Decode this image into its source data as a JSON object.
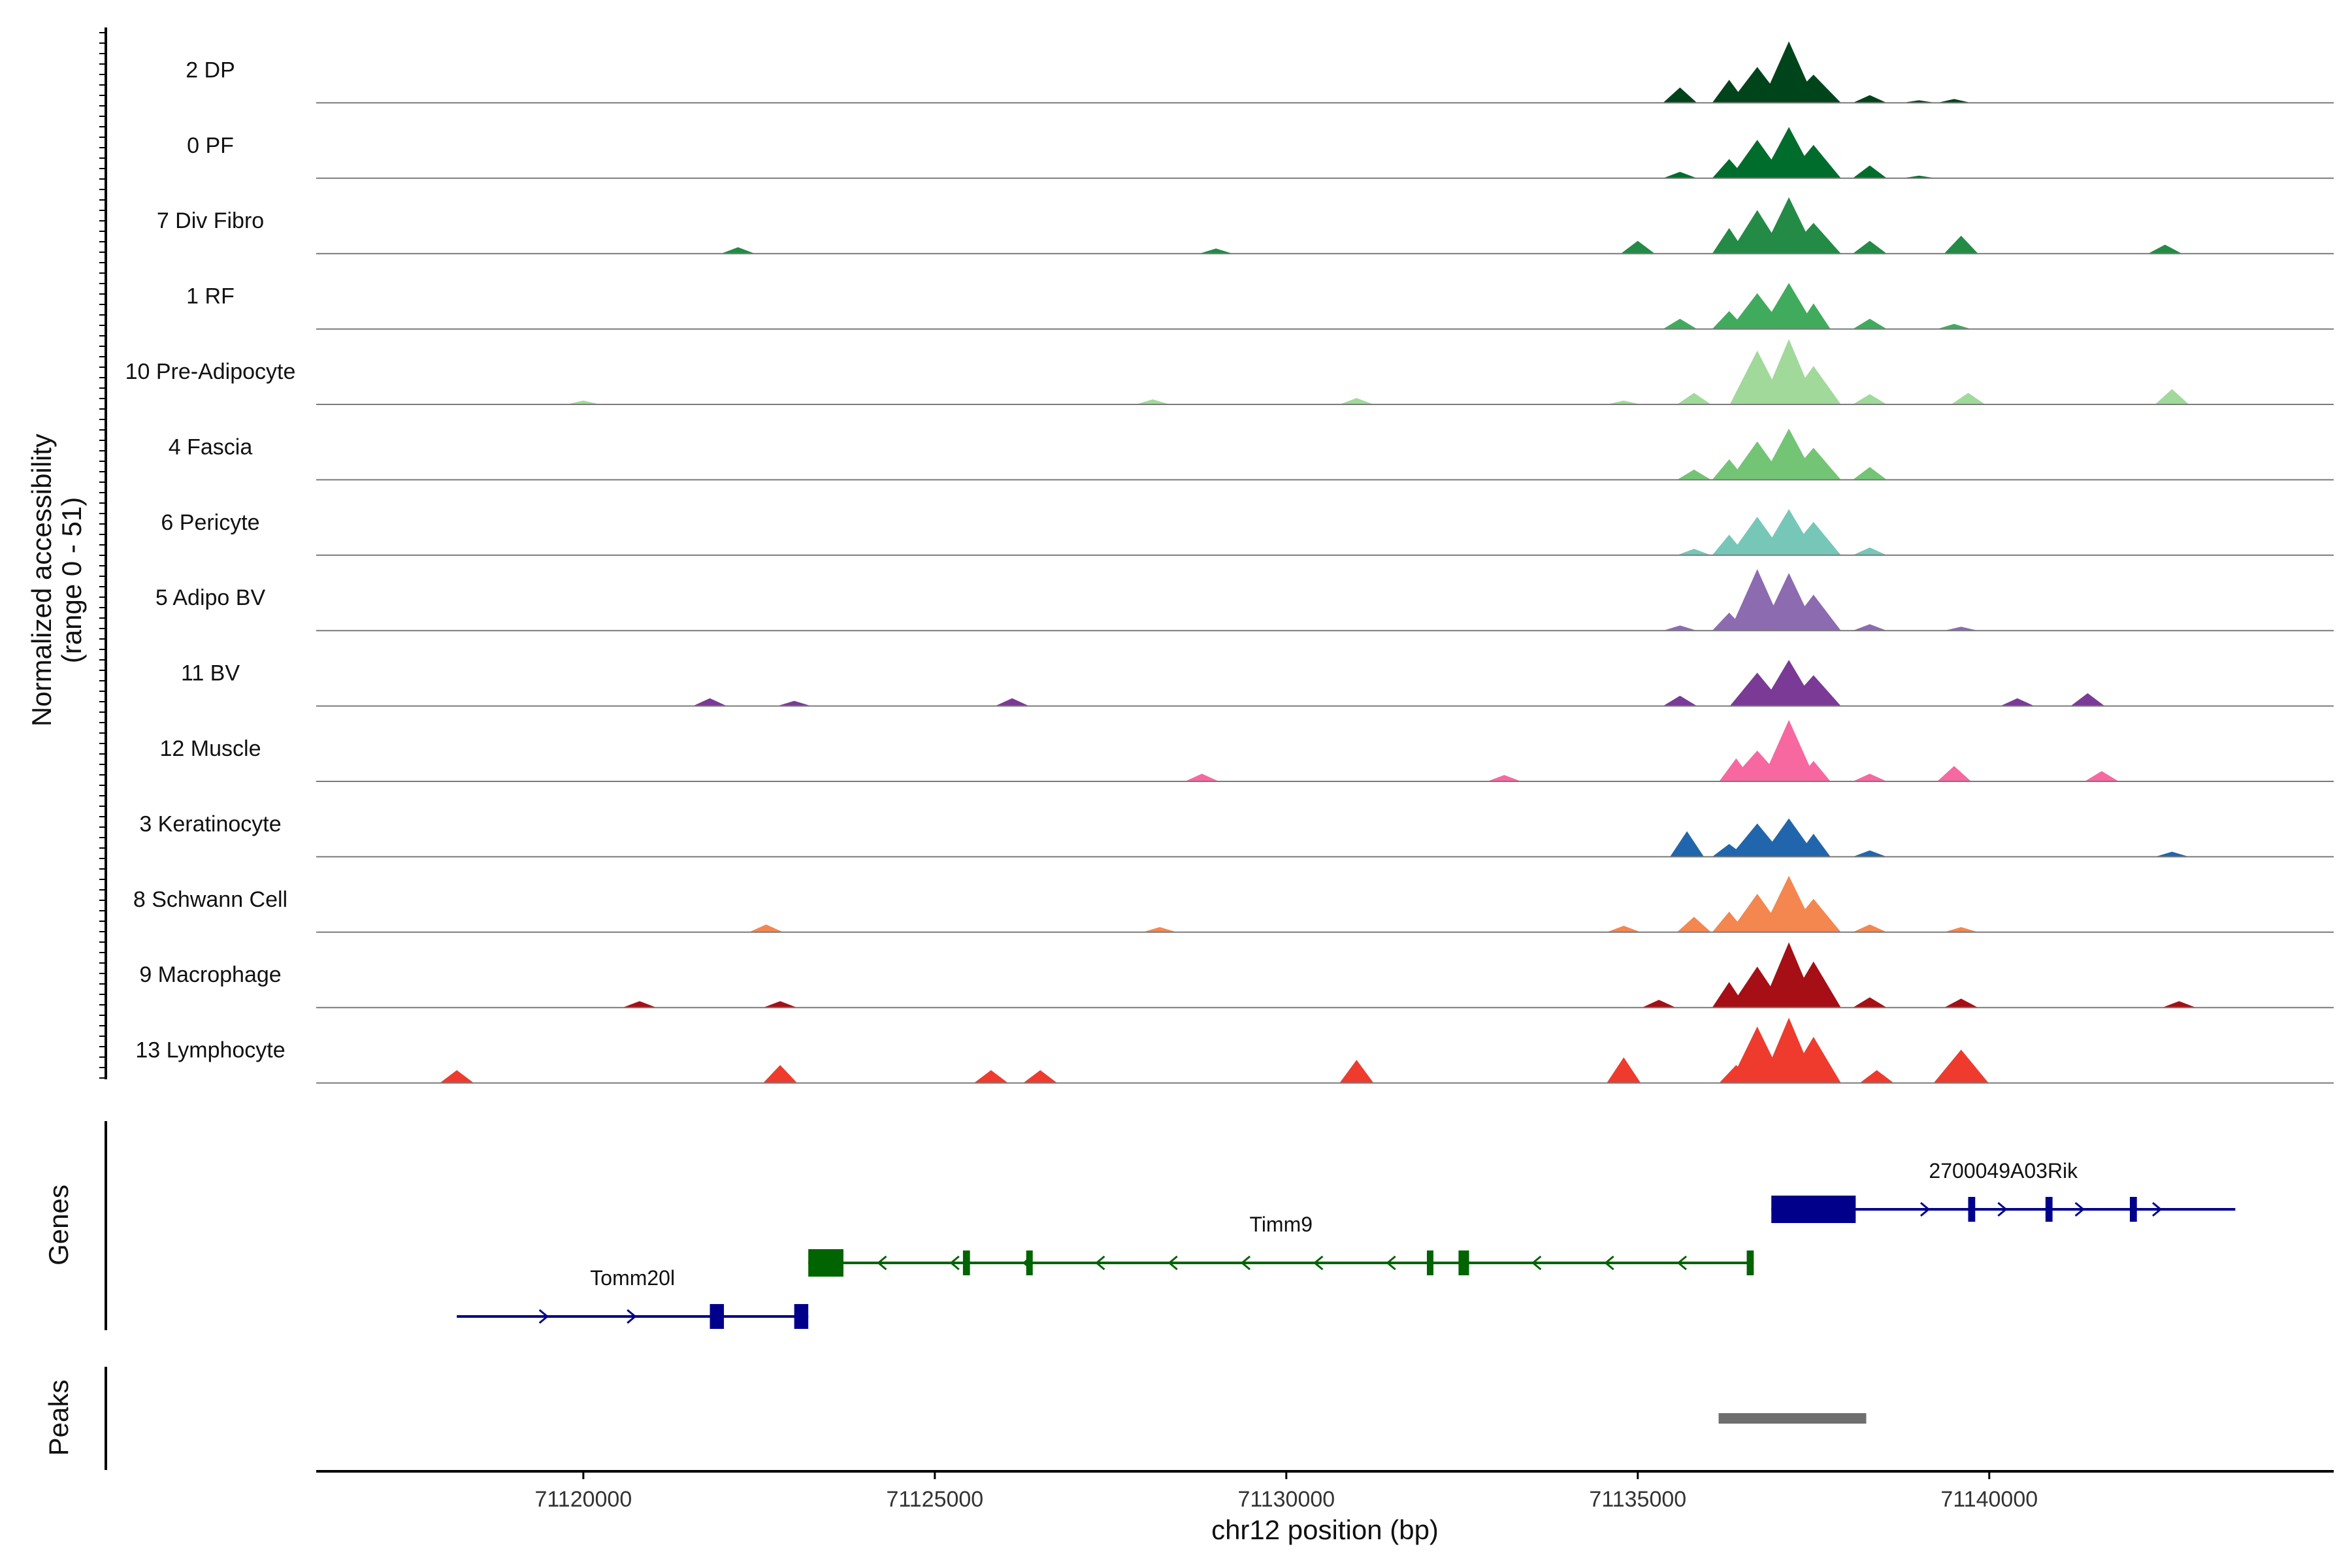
{
  "chart_data": {
    "type": "area",
    "xlabel": "chr12 position (bp)",
    "ylabel": "Normalized accessibility",
    "ylabel_range": "(range 0 - 51)",
    "ylim": [
      0,
      51
    ],
    "xlim": [
      71116200,
      71144900
    ],
    "x_ticks": [
      {
        "value": 71120000,
        "label": "71120000"
      },
      {
        "value": 71125000,
        "label": "71125000"
      },
      {
        "value": 71130000,
        "label": "71130000"
      },
      {
        "value": 71135000,
        "label": "71135000"
      },
      {
        "value": 71140000,
        "label": "71140000"
      }
    ],
    "grid": false,
    "series": [
      {
        "name": "2 DP",
        "color": "#00441b",
        "points": [
          [
            71135600,
            12
          ],
          [
            71136300,
            18
          ],
          [
            71136700,
            28
          ],
          [
            71137150,
            48
          ],
          [
            71137500,
            22
          ],
          [
            71138300,
            6
          ],
          [
            71139000,
            2
          ],
          [
            71139500,
            3
          ]
        ]
      },
      {
        "name": "0 PF",
        "color": "#006d2c",
        "points": [
          [
            71135600,
            5
          ],
          [
            71136300,
            15
          ],
          [
            71136700,
            30
          ],
          [
            71137150,
            40
          ],
          [
            71137500,
            26
          ],
          [
            71138300,
            10
          ],
          [
            71139000,
            2
          ]
        ]
      },
      {
        "name": "7 Div Fibro",
        "color": "#238b45",
        "points": [
          [
            71122200,
            5
          ],
          [
            71129000,
            4
          ],
          [
            71135000,
            10
          ],
          [
            71136300,
            20
          ],
          [
            71136700,
            34
          ],
          [
            71137150,
            44
          ],
          [
            71137500,
            24
          ],
          [
            71138300,
            10
          ],
          [
            71139600,
            14
          ],
          [
            71142500,
            7
          ]
        ]
      },
      {
        "name": "1 RF",
        "color": "#41ab5d",
        "points": [
          [
            71135600,
            8
          ],
          [
            71136300,
            14
          ],
          [
            71136700,
            28
          ],
          [
            71137150,
            36
          ],
          [
            71137500,
            20
          ],
          [
            71138300,
            8
          ],
          [
            71139500,
            4
          ]
        ]
      },
      {
        "name": "10 Pre-Adipocyte",
        "color": "#a1d99b",
        "points": [
          [
            71120000,
            3
          ],
          [
            71128100,
            4
          ],
          [
            71131000,
            5
          ],
          [
            71134800,
            3
          ],
          [
            71135800,
            9
          ],
          [
            71136700,
            42
          ],
          [
            71137150,
            51
          ],
          [
            71137500,
            30
          ],
          [
            71138300,
            8
          ],
          [
            71139700,
            9
          ],
          [
            71142600,
            12
          ]
        ]
      },
      {
        "name": "4 Fascia",
        "color": "#74c476",
        "points": [
          [
            71135800,
            8
          ],
          [
            71136300,
            16
          ],
          [
            71136700,
            30
          ],
          [
            71137150,
            40
          ],
          [
            71137500,
            25
          ],
          [
            71138300,
            10
          ]
        ]
      },
      {
        "name": "6 Pericyte",
        "color": "#76c7b8",
        "points": [
          [
            71135800,
            5
          ],
          [
            71136300,
            16
          ],
          [
            71136700,
            30
          ],
          [
            71137150,
            36
          ],
          [
            71137500,
            26
          ],
          [
            71138300,
            6
          ]
        ]
      },
      {
        "name": "5 Adipo BV",
        "color": "#8c6bb1",
        "points": [
          [
            71135600,
            4
          ],
          [
            71136300,
            14
          ],
          [
            71136700,
            48
          ],
          [
            71137150,
            45
          ],
          [
            71137500,
            28
          ],
          [
            71138300,
            5
          ],
          [
            71139600,
            3
          ]
        ]
      },
      {
        "name": "11 BV",
        "color": "#7a3a96",
        "points": [
          [
            71121800,
            6
          ],
          [
            71123000,
            4
          ],
          [
            71126100,
            6
          ],
          [
            71135600,
            8
          ],
          [
            71136700,
            26
          ],
          [
            71137150,
            36
          ],
          [
            71137500,
            24
          ],
          [
            71140400,
            6
          ],
          [
            71141400,
            10
          ]
        ]
      },
      {
        "name": "12 Muscle",
        "color": "#f768a1",
        "points": [
          [
            71128800,
            6
          ],
          [
            71133100,
            5
          ],
          [
            71136400,
            18
          ],
          [
            71136700,
            24
          ],
          [
            71137150,
            48
          ],
          [
            71137500,
            16
          ],
          [
            71138300,
            6
          ],
          [
            71139500,
            12
          ],
          [
            71141600,
            8
          ]
        ]
      },
      {
        "name": "3 Keratinocyte",
        "color": "#2166ac",
        "points": [
          [
            71135700,
            20
          ],
          [
            71136300,
            10
          ],
          [
            71136700,
            26
          ],
          [
            71137150,
            30
          ],
          [
            71137500,
            18
          ],
          [
            71138300,
            5
          ],
          [
            71142600,
            4
          ]
        ]
      },
      {
        "name": "8 Schwann Cell",
        "color": "#f4874f",
        "points": [
          [
            71122600,
            6
          ],
          [
            71128200,
            4
          ],
          [
            71134800,
            5
          ],
          [
            71135800,
            12
          ],
          [
            71136300,
            16
          ],
          [
            71136700,
            30
          ],
          [
            71137150,
            44
          ],
          [
            71137500,
            26
          ],
          [
            71138300,
            6
          ],
          [
            71139600,
            4
          ]
        ]
      },
      {
        "name": "9 Macrophage",
        "color": "#a50f15",
        "points": [
          [
            71120800,
            5
          ],
          [
            71122800,
            5
          ],
          [
            71135300,
            6
          ],
          [
            71136300,
            20
          ],
          [
            71136700,
            32
          ],
          [
            71137150,
            51
          ],
          [
            71137500,
            36
          ],
          [
            71138300,
            8
          ],
          [
            71139600,
            7
          ],
          [
            71142700,
            5
          ]
        ]
      },
      {
        "name": "13 Lymphocyte",
        "color": "#ee3b2e",
        "points": [
          [
            71118200,
            10
          ],
          [
            71122800,
            14
          ],
          [
            71125800,
            10
          ],
          [
            71126500,
            10
          ],
          [
            71131000,
            18
          ],
          [
            71134800,
            20
          ],
          [
            71136400,
            14
          ],
          [
            71136700,
            44
          ],
          [
            71137150,
            51
          ],
          [
            71137500,
            36
          ],
          [
            71138400,
            10
          ],
          [
            71139600,
            26
          ]
        ]
      }
    ]
  },
  "gene_track": {
    "label": "Genes",
    "genes": [
      {
        "name": "Tomm20l",
        "strand": "+",
        "start": 71118200,
        "end": 71123200,
        "color": "#00008b",
        "exons": [
          [
            71121800,
            71122000
          ],
          [
            71123000,
            71123200
          ]
        ]
      },
      {
        "name": "Timm9",
        "strand": "-",
        "start": 71123200,
        "end": 71136650,
        "color": "#006400",
        "exons": [
          [
            71123200,
            71123700
          ],
          [
            71125400,
            71125500
          ],
          [
            71126300,
            71126380
          ],
          [
            71132000,
            71132080
          ],
          [
            71132450,
            71132600
          ],
          [
            71136550,
            71136650
          ]
        ]
      },
      {
        "name": "2700049A03Rik",
        "strand": "+",
        "start": 71136900,
        "end": 71143500,
        "color": "#00008b",
        "exons": [
          [
            71136900,
            71138100
          ],
          [
            71139700,
            71139800
          ],
          [
            71140800,
            71140900
          ],
          [
            71142000,
            71142100
          ]
        ]
      }
    ]
  },
  "peak_track": {
    "label": "Peaks",
    "color": "#6e6e6e",
    "peaks": [
      [
        71136150,
        71138250
      ]
    ]
  }
}
